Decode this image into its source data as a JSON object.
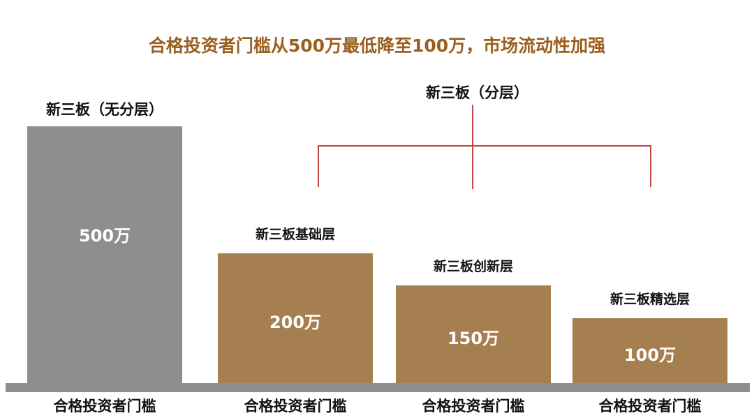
{
  "chart_data": {
    "type": "bar",
    "title": "合格投资者门槛从500万最低降至100万，市场流动性加强",
    "categories": [
      "新三板（无分层）",
      "新三板基础层",
      "新三板创新层",
      "新三板精选层"
    ],
    "values": [
      500,
      200,
      150,
      100
    ],
    "value_labels": [
      "500万",
      "200万",
      "150万",
      "100万"
    ],
    "x_tick_labels": [
      "合格投资者门槛",
      "合格投资者门槛",
      "合格投资者门槛",
      "合格投资者门槛"
    ],
    "group_label": "新三板（分层）",
    "unit": "万",
    "colors": [
      "#8e8e8e",
      "#a67f51",
      "#a67f51",
      "#a67f51"
    ],
    "title_color": "#9a5f1c",
    "bracket_color": "#c0463e",
    "grid": false
  }
}
